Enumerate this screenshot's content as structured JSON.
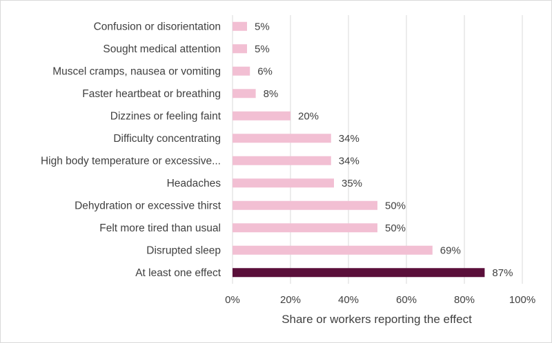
{
  "chart_data": {
    "type": "bar",
    "orientation": "horizontal",
    "title": "",
    "xlabel": "Share or workers reporting the effect",
    "ylabel": "",
    "xlim": [
      0,
      100
    ],
    "ticks": [
      "0%",
      "20%",
      "40%",
      "60%",
      "80%",
      "100%"
    ],
    "grid": true,
    "categories": [
      "Confusion or disorientation",
      "Sought medical attention",
      "Muscel cramps, nausea or vomiting",
      "Faster heartbeat or breathing",
      "Dizzines or feeling faint",
      "Difficulty concentrating",
      "High body temperature or excessive...",
      "Headaches",
      "Dehydration or excessive thirst",
      "Felt more tired than usual",
      "Disrupted sleep",
      "At least one effect"
    ],
    "values": [
      5,
      5,
      6,
      8,
      20,
      34,
      34,
      35,
      50,
      50,
      69,
      87
    ],
    "value_labels": [
      "5%",
      "5%",
      "6%",
      "8%",
      "20%",
      "34%",
      "34%",
      "35%",
      "50%",
      "50%",
      "69%",
      "87%"
    ],
    "colors": {
      "bar": "#f2bfd3",
      "highlight": "#5a0f3a",
      "grid": "#d9d9d9",
      "text": "#404040"
    },
    "highlight_index": 11
  }
}
